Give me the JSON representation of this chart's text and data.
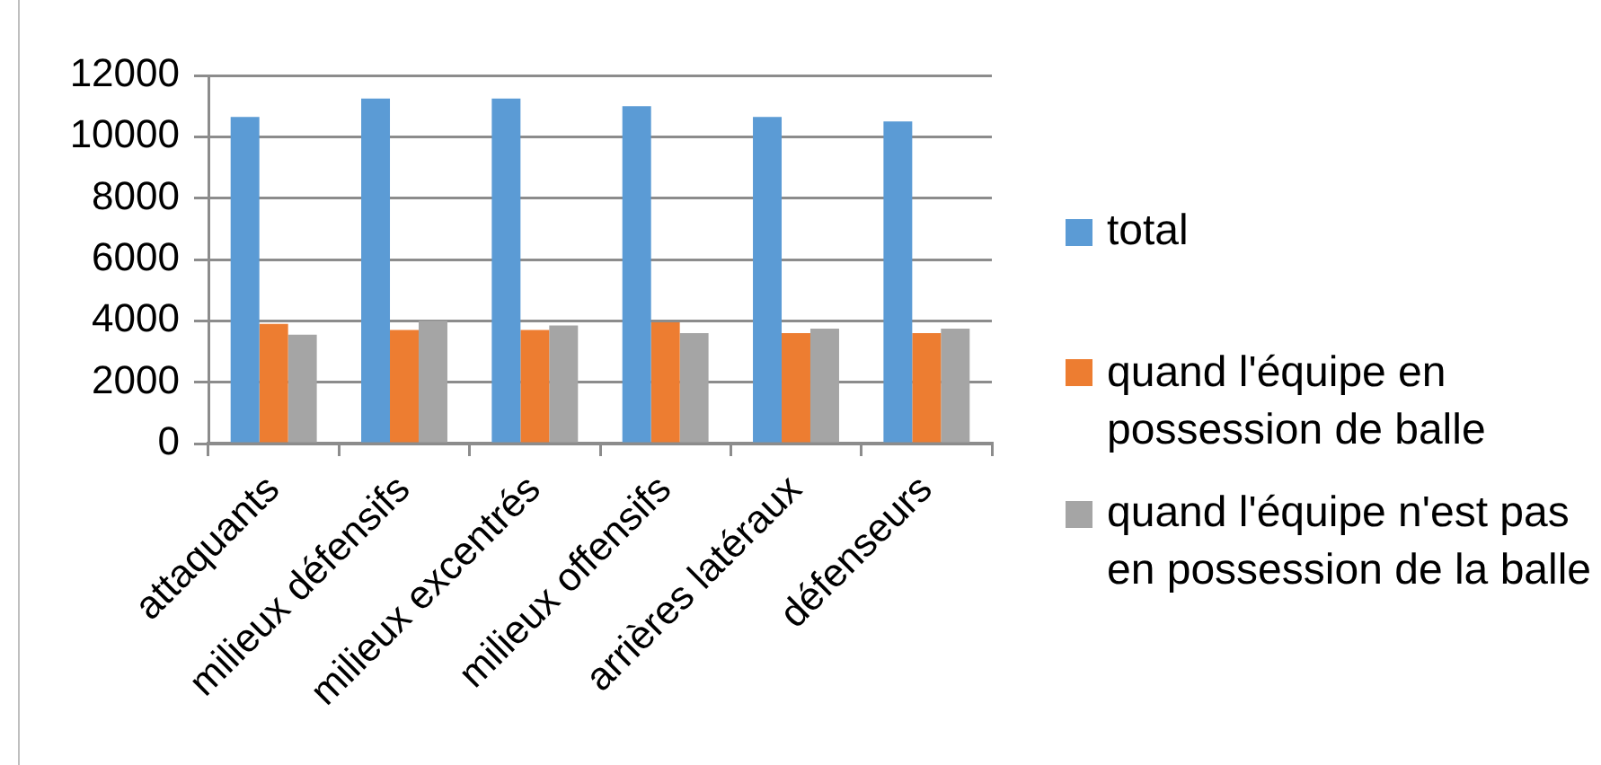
{
  "chart_data": {
    "type": "bar",
    "categories": [
      "attaquants",
      "milieux défensifs",
      "milieux excentrés",
      "milieux offensifs",
      "arrières latéraux",
      "défenseurs"
    ],
    "series": [
      {
        "name": "total",
        "color": "#5b9bd5",
        "values": [
          10650,
          11250,
          11250,
          11000,
          10650,
          10500
        ]
      },
      {
        "name": "quand l'équipe en possession de balle",
        "color": "#ed7d31",
        "values": [
          3900,
          3700,
          3700,
          3950,
          3600,
          3600
        ]
      },
      {
        "name": "quand l'équipe n'est pas en possession de la balle",
        "color": "#a5a5a5",
        "values": [
          3550,
          4000,
          3850,
          3600,
          3750,
          3750
        ]
      }
    ],
    "ylim": [
      0,
      12000
    ],
    "yticks": [
      0,
      2000,
      4000,
      6000,
      8000,
      10000,
      12000
    ],
    "grid": "y",
    "legend": "right"
  }
}
